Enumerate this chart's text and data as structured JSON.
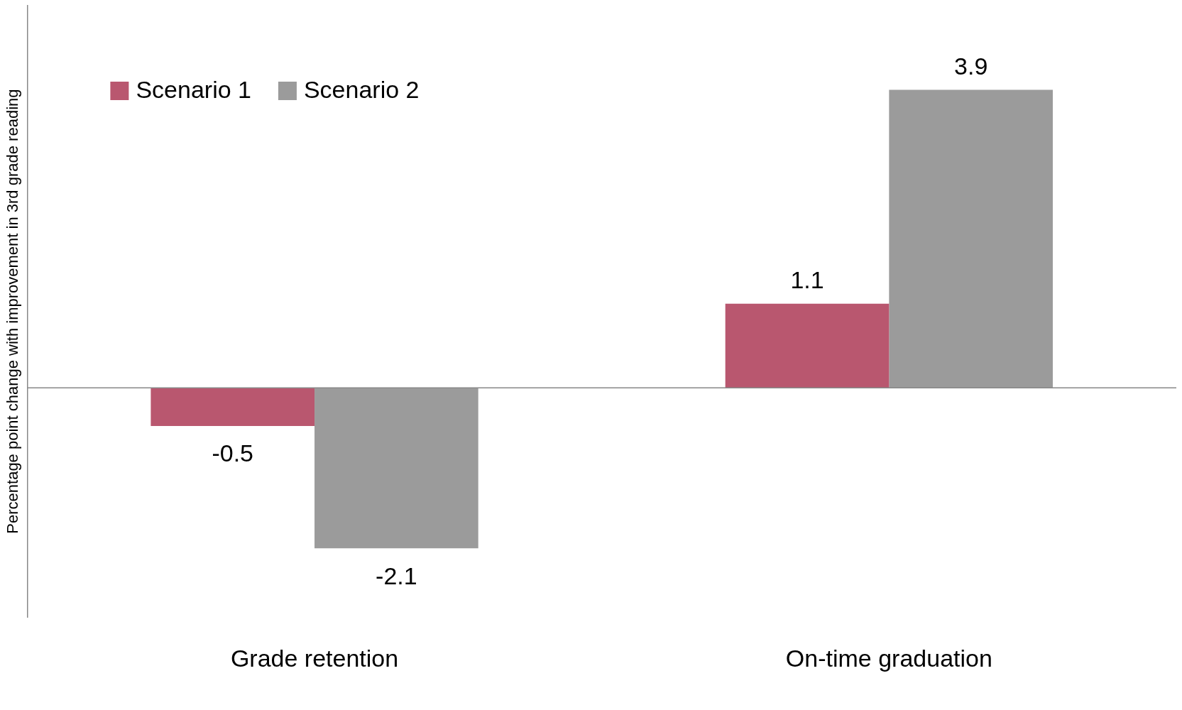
{
  "chart_data": {
    "type": "bar",
    "ylabel": "Percentage point change with improvement in 3rd grade reading",
    "categories": [
      "Grade retention",
      "On-time graduation"
    ],
    "series": [
      {
        "name": "Scenario 1",
        "color": "#b9576f",
        "values": [
          -0.5,
          1.1
        ]
      },
      {
        "name": "Scenario 2",
        "color": "#9b9b9b",
        "values": [
          -2.1,
          3.9
        ]
      }
    ],
    "ylim": [
      -3,
      5
    ],
    "tick_labels": "x",
    "grid": false,
    "legend": "top left",
    "data_labels": true
  }
}
